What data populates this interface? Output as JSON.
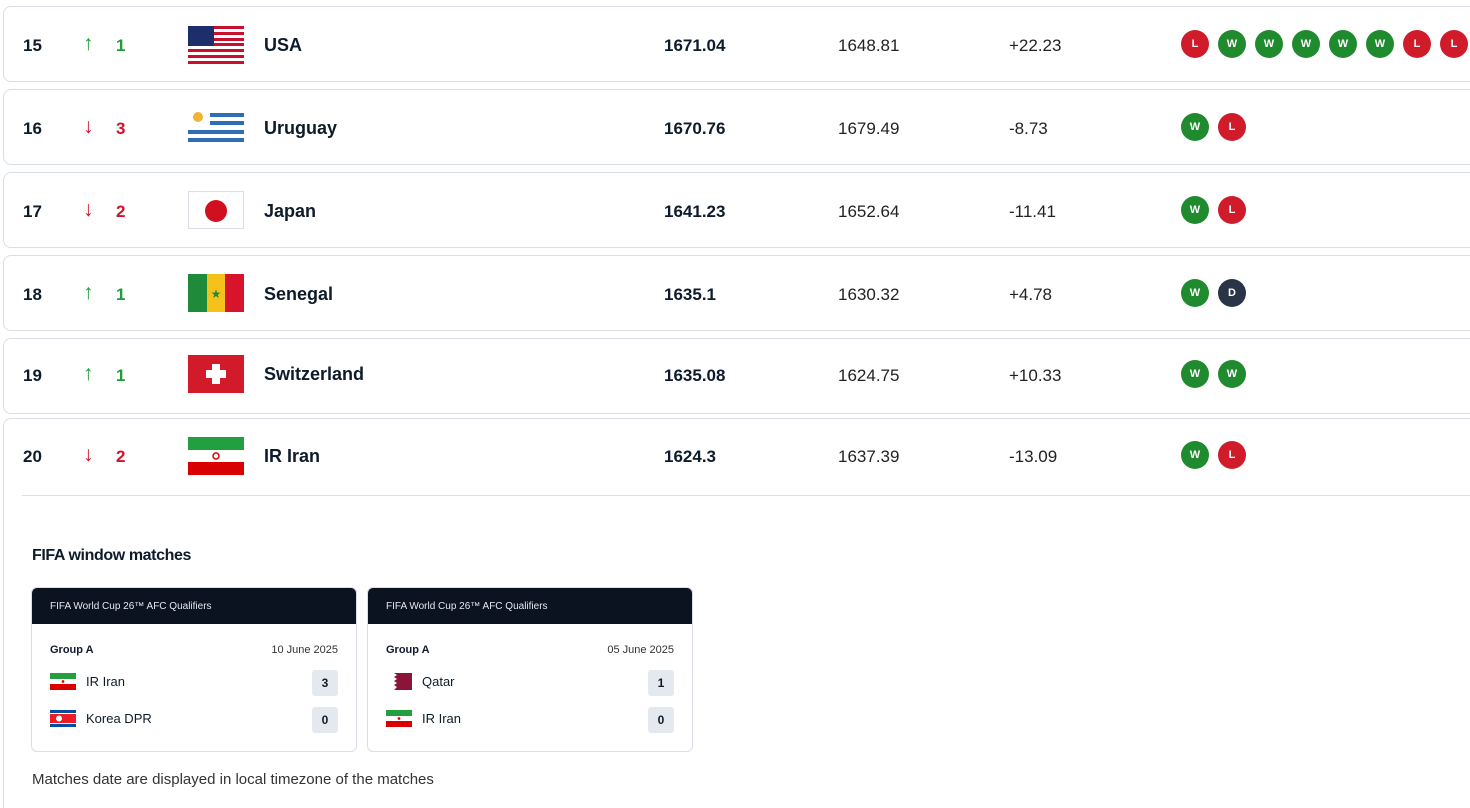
{
  "rankings": [
    {
      "rank": "15",
      "direction": "up",
      "change": "1",
      "team": "USA",
      "flag": "usa-flag",
      "points": "1671.04",
      "previous": "1648.81",
      "diff": "+22.23",
      "form": [
        "L",
        "W",
        "W",
        "W",
        "W",
        "W",
        "L",
        "L"
      ]
    },
    {
      "rank": "16",
      "direction": "down",
      "change": "3",
      "team": "Uruguay",
      "flag": "uruguay-flag",
      "points": "1670.76",
      "previous": "1679.49",
      "diff": "-8.73",
      "form": [
        "W",
        "L"
      ]
    },
    {
      "rank": "17",
      "direction": "down",
      "change": "2",
      "team": "Japan",
      "flag": "japan-flag",
      "points": "1641.23",
      "previous": "1652.64",
      "diff": "-11.41",
      "form": [
        "W",
        "L"
      ]
    },
    {
      "rank": "18",
      "direction": "up",
      "change": "1",
      "team": "Senegal",
      "flag": "senegal-flag",
      "points": "1635.1",
      "previous": "1630.32",
      "diff": "+4.78",
      "form": [
        "W",
        "D"
      ]
    },
    {
      "rank": "19",
      "direction": "up",
      "change": "1",
      "team": "Switzerland",
      "flag": "switzerland-flag",
      "points": "1635.08",
      "previous": "1624.75",
      "diff": "+10.33",
      "form": [
        "W",
        "W"
      ]
    },
    {
      "rank": "20",
      "direction": "down",
      "change": "2",
      "team": "IR Iran",
      "flag": "iran-flag",
      "points": "1624.3",
      "previous": "1637.39",
      "diff": "-13.09",
      "form": [
        "W",
        "L"
      ]
    }
  ],
  "window_matches": {
    "title": "FIFA window matches",
    "matches": [
      {
        "competition": "FIFA World Cup 26™ AFC Qualifiers",
        "group": "Group A",
        "date": "10 June 2025",
        "home": {
          "team": "IR Iran",
          "flag": "iran-flag",
          "score": "3"
        },
        "away": {
          "team": "Korea DPR",
          "flag": "korea-dpr-flag",
          "score": "0"
        }
      },
      {
        "competition": "FIFA World Cup 26™ AFC Qualifiers",
        "group": "Group A",
        "date": "05 June 2025",
        "home": {
          "team": "Qatar",
          "flag": "qatar-flag",
          "score": "1"
        },
        "away": {
          "team": "IR Iran",
          "flag": "iran-flag",
          "score": "0"
        }
      }
    ],
    "note": "Matches date are displayed in local timezone of the matches"
  },
  "colors": {
    "win": "#1f8a2e",
    "loss": "#d01c2a",
    "draw": "#2a3447",
    "up": "#1f9d3a",
    "down": "#d1122b",
    "card_header": "#0b1220"
  }
}
